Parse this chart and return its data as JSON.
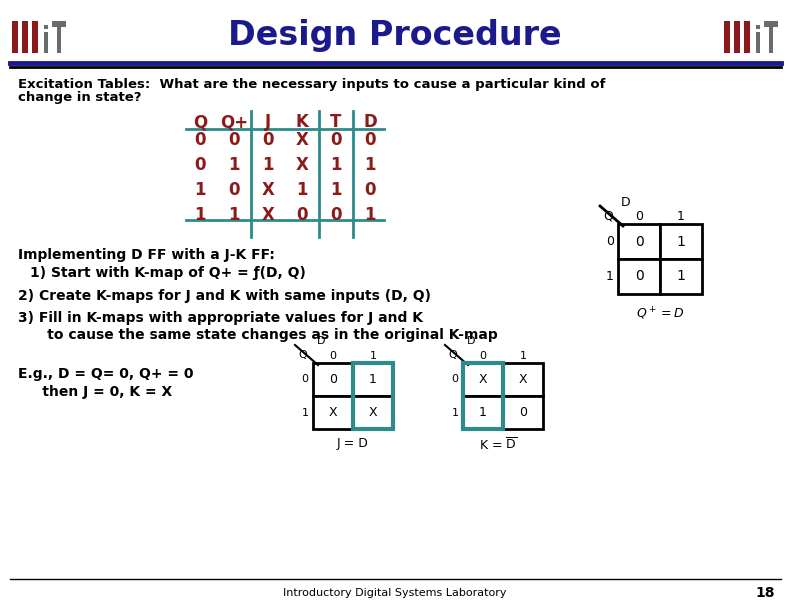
{
  "title": "Design Procedure",
  "title_color": "#1a1a8c",
  "dark_red": "#8b1a1a",
  "teal": "#2e8b8b",
  "excitation_text_1": "Excitation Tables:  What are the necessary inputs to cause a particular kind of",
  "excitation_text_2": "change in state?",
  "table_headers": [
    "Q",
    "Q+",
    "J",
    "K",
    "T",
    "D"
  ],
  "table_data": [
    [
      "0",
      "0",
      "0",
      "X",
      "0",
      "0"
    ],
    [
      "0",
      "1",
      "1",
      "X",
      "1",
      "1"
    ],
    [
      "1",
      "0",
      "X",
      "1",
      "1",
      "0"
    ],
    [
      "1",
      "1",
      "X",
      "0",
      "0",
      "1"
    ]
  ],
  "impl_text": "Implementing D FF with a J-K FF:",
  "step1_text": "1) Start with K-map of Q+ = ƒ(D, Q)",
  "step2_text": "2) Create K-maps for J and K with same inputs (D, Q)",
  "step3_line1": "3) Fill in K-maps with appropriate values for J and K",
  "step3_line2": "      to cause the same state changes as in the original K-map",
  "example_line1": "E.g., D = Q= 0, Q+ = 0",
  "example_line2": "     then J = 0, K = X",
  "footer_text": "Introductory Digital Systems Laboratory",
  "page_num": "18",
  "kmap_right_cells": [
    [
      "0",
      "1"
    ],
    [
      "0",
      "1"
    ]
  ],
  "kmap_j_cells": [
    [
      "0",
      "1"
    ],
    [
      "X",
      "X"
    ]
  ],
  "kmap_k_cells": [
    [
      "X",
      "X"
    ],
    [
      "1",
      "0"
    ]
  ]
}
